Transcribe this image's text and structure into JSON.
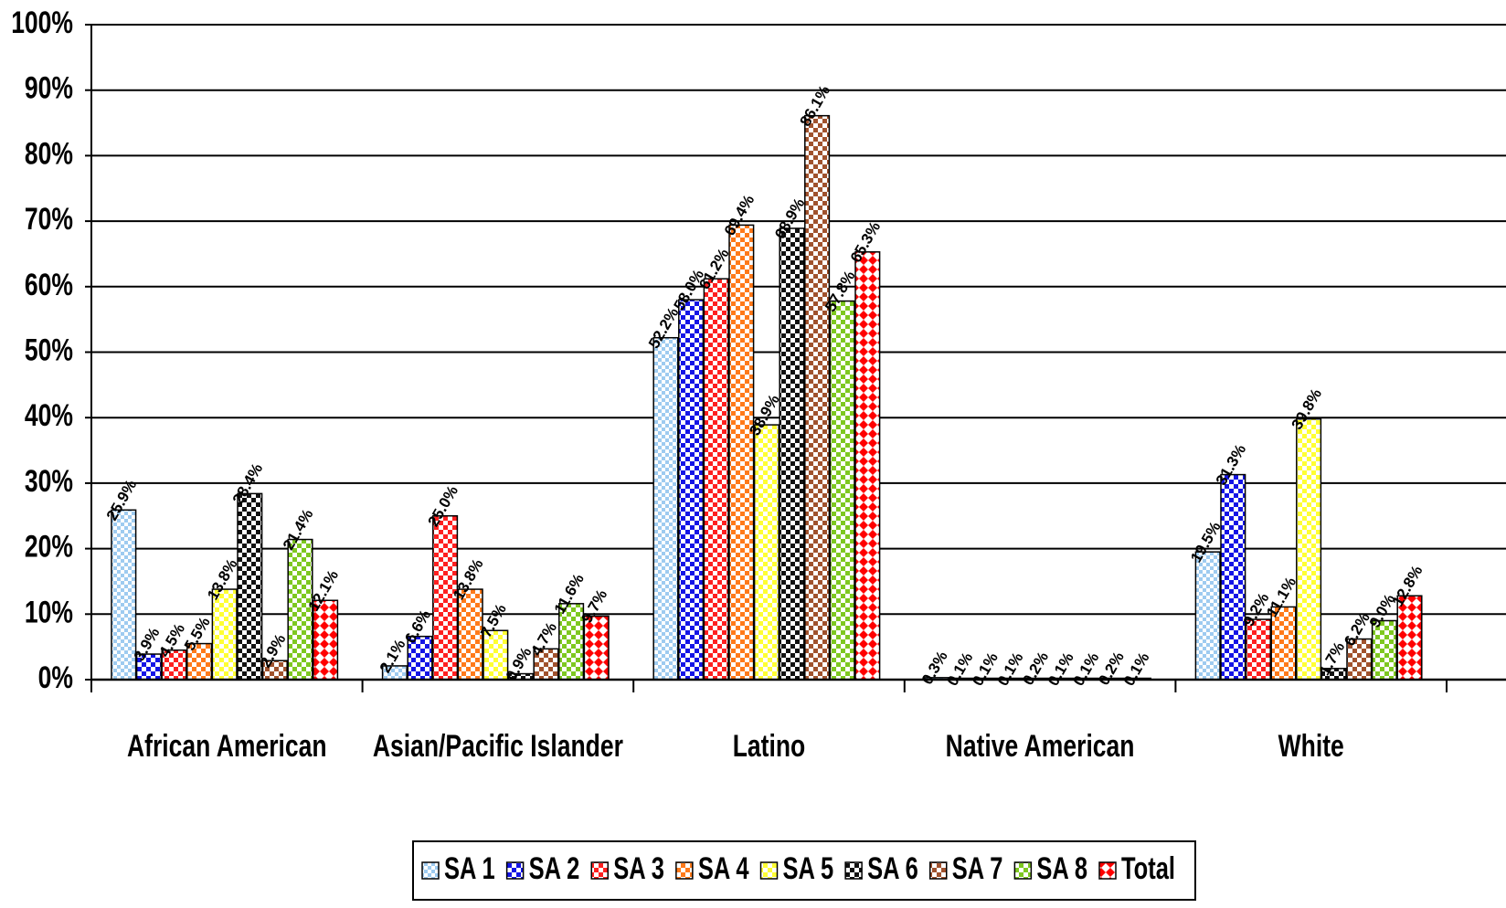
{
  "chart_data": {
    "type": "bar",
    "categories": [
      "African American",
      "Asian/Pacific Islander",
      "Latino",
      "Native American",
      "White"
    ],
    "yticks": [
      "0%",
      "10%",
      "20%",
      "30%",
      "40%",
      "50%",
      "60%",
      "70%",
      "80%",
      "90%",
      "100%"
    ],
    "ylim": [
      0,
      100
    ],
    "grid": true,
    "legend_position": "bottom",
    "series": [
      {
        "name": "SA 1",
        "color": "#9ecbf0",
        "pattern": "check-small",
        "values": [
          25.9,
          2.1,
          52.2,
          0.3,
          19.5
        ]
      },
      {
        "name": "SA 2",
        "color": "#1414e6",
        "pattern": "check-medium",
        "values": [
          3.9,
          6.6,
          58.0,
          0.1,
          31.3
        ]
      },
      {
        "name": "SA 3",
        "color": "#ff2020",
        "pattern": "check-medium",
        "values": [
          4.5,
          25.0,
          61.2,
          0.1,
          9.2
        ]
      },
      {
        "name": "SA 4",
        "color": "#ff7a1a",
        "pattern": "check-medium",
        "values": [
          5.5,
          13.8,
          69.4,
          0.1,
          11.1
        ]
      },
      {
        "name": "SA 5",
        "color": "#ffff33",
        "pattern": "check-medium",
        "values": [
          13.8,
          7.5,
          38.9,
          0.2,
          39.8
        ]
      },
      {
        "name": "SA 6",
        "color": "#111111",
        "pattern": "check-medium",
        "values": [
          28.4,
          0.9,
          68.9,
          0.1,
          1.7
        ]
      },
      {
        "name": "SA 7",
        "color": "#a0522d",
        "pattern": "check-medium",
        "values": [
          2.9,
          4.7,
          86.1,
          0.1,
          6.2
        ]
      },
      {
        "name": "SA 8",
        "color": "#7ec820",
        "pattern": "check-medium",
        "values": [
          21.4,
          11.6,
          57.8,
          0.2,
          9.0
        ]
      },
      {
        "name": "Total",
        "color": "#ff0000",
        "pattern": "diamond",
        "values": [
          12.1,
          9.7,
          65.3,
          0.1,
          12.8
        ]
      }
    ]
  }
}
